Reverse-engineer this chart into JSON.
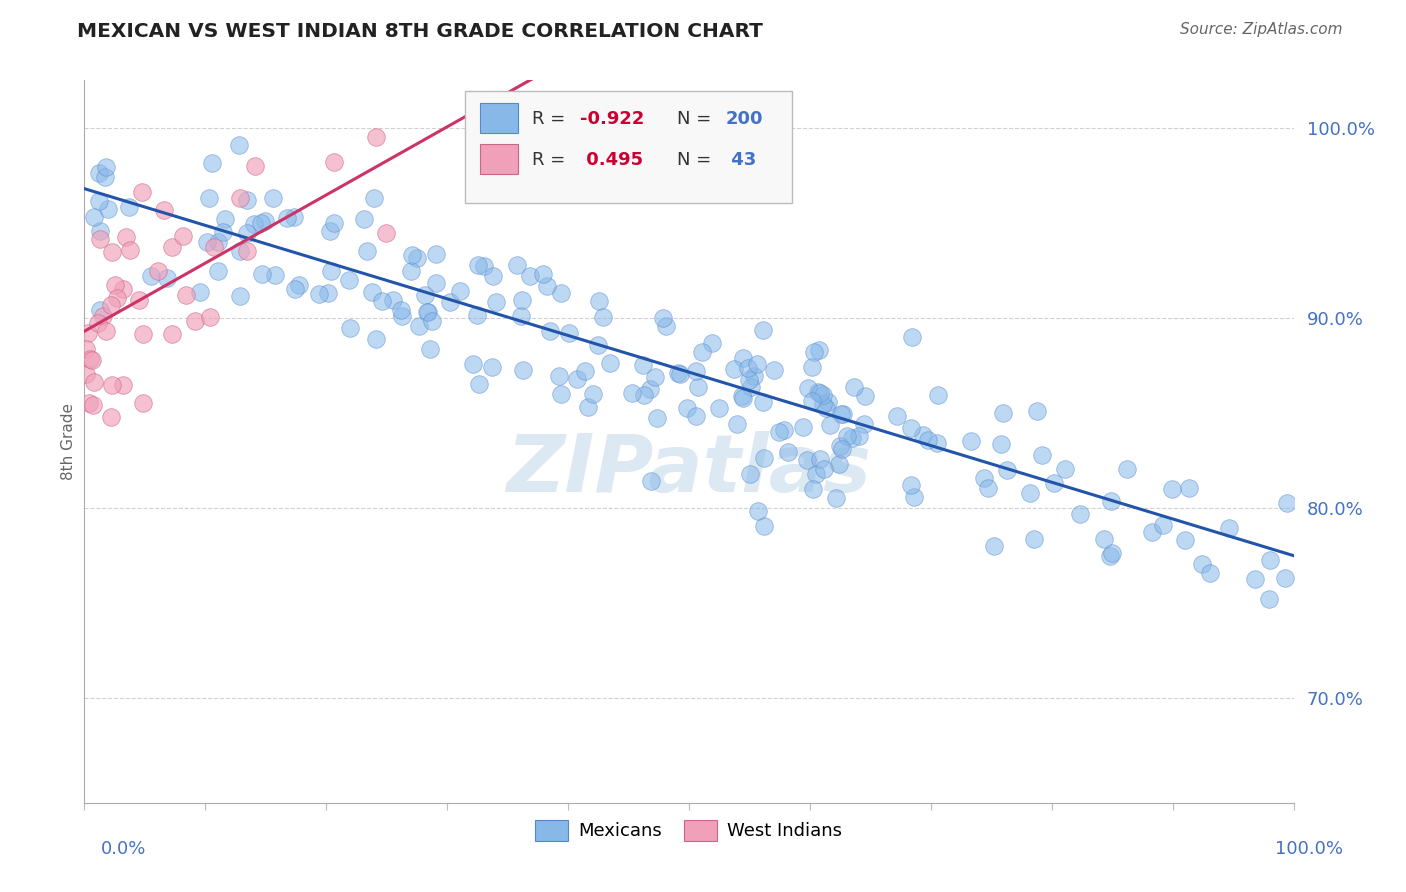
{
  "title": "MEXICAN VS WEST INDIAN 8TH GRADE CORRELATION CHART",
  "source_text": "Source: ZipAtlas.com",
  "ylabel": "8th Grade",
  "y_tick_labels": [
    "70.0%",
    "80.0%",
    "90.0%",
    "100.0%"
  ],
  "y_tick_values": [
    0.7,
    0.8,
    0.9,
    1.0
  ],
  "x_range": [
    0.0,
    1.0
  ],
  "y_range": [
    0.645,
    1.025
  ],
  "mex_color": "#88b8e8",
  "mex_edge_color": "#5588cc",
  "wi_color": "#f0a0b8",
  "wi_edge_color": "#cc6688",
  "blue_line_color": "#2255aa",
  "pink_line_color": "#cc3366",
  "watermark_text": "ZIPatlas",
  "watermark_color": "#dce8f2",
  "background_color": "#ffffff",
  "grid_color": "#cccccc",
  "title_color": "#222222",
  "axis_label_color": "#4472c4",
  "legend_r_color": "#cc0033",
  "legend_n_color": "#4472c4",
  "mex_slope": -0.195,
  "mex_intercept": 0.968,
  "wi_slope": 0.35,
  "wi_intercept": 0.895,
  "N_mex": 200,
  "N_wi": 43
}
